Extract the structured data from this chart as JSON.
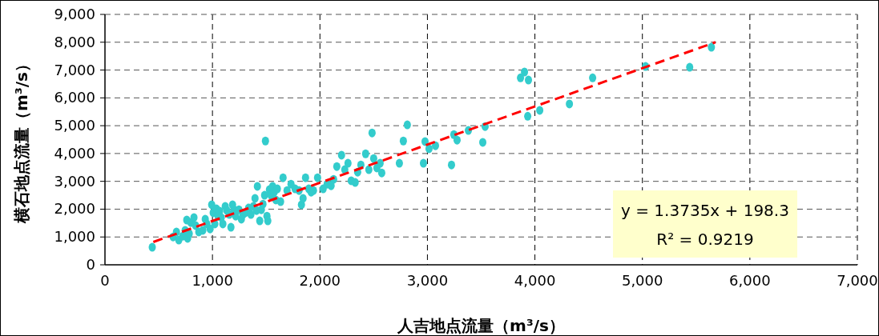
{
  "chart_data": {
    "type": "scatter",
    "xlabel": "人吉地点流量（m³/s）",
    "ylabel": "横石地点流量（m³/s）",
    "annotations": [
      "y = 1.3735x + 198.3",
      "R² = 0.9219"
    ],
    "xlim": [
      0,
      7000
    ],
    "ylim": [
      0,
      9000
    ],
    "xticks": [
      0,
      {
        "value": 1000,
        "label": "1,000"
      },
      {
        "value": 2000,
        "label": "2,000"
      },
      {
        "value": 3000,
        "label": "3,000"
      },
      {
        "value": 4000,
        "label": "4,000"
      },
      {
        "value": 5000,
        "label": "5,000"
      },
      {
        "value": 6000,
        "label": "6,000"
      },
      {
        "value": 7000,
        "label": "7,000"
      }
    ],
    "yticks": [
      0,
      {
        "value": 1000,
        "label": "1,000"
      },
      {
        "value": 2000,
        "label": "2,000"
      },
      {
        "value": 3000,
        "label": "3,000"
      },
      {
        "value": 4000,
        "label": "4,000"
      },
      {
        "value": 5000,
        "label": "5,000"
      },
      {
        "value": 6000,
        "label": "6,000"
      },
      {
        "value": 7000,
        "label": "7,000"
      },
      {
        "value": 8000,
        "label": "8,000"
      },
      {
        "value": 9000,
        "label": "9,000"
      }
    ],
    "grid": true,
    "series": [
      {
        "color": "#33cccc",
        "marker": "circle",
        "x": [
          440,
          634,
          665,
          687,
          724,
          746,
          769,
          784,
          761,
          799,
          828,
          843,
          873,
          910,
          933,
          948,
          978,
          993,
          1007,
          1022,
          1037,
          1052,
          1067,
          1082,
          1097,
          1119,
          1134,
          1157,
          1172,
          1187,
          1201,
          1216,
          1246,
          1269,
          1284,
          1306,
          1336,
          1358,
          1381,
          1396,
          1410,
          1418,
          1440,
          1455,
          1470,
          1485,
          1507,
          1515,
          1493,
          1530,
          1545,
          1560,
          1575,
          1590,
          1604,
          1634,
          1657,
          1694,
          1731,
          1769,
          1806,
          1828,
          1843,
          1866,
          1896,
          1918,
          1940,
          1978,
          2030,
          2067,
          2104,
          2127,
          2157,
          2201,
          2231,
          2261,
          2291,
          2328,
          2351,
          2381,
          2425,
          2455,
          2485,
          2500,
          2530,
          2560,
          2575,
          2739,
          2776,
          2813,
          2963,
          2978,
          3015,
          3075,
          3224,
          3246,
          3276,
          3381,
          3515,
          3537,
          3866,
          3903,
          3940,
          3933,
          4045,
          4321,
          4537,
          5030,
          5440,
          5642
        ],
        "values": [
          630,
          1000,
          1180,
          890,
          1030,
          1240,
          950,
          1120,
          1610,
          1520,
          1700,
          1410,
          1180,
          1240,
          1640,
          1470,
          1290,
          2160,
          1870,
          1470,
          2010,
          1750,
          1930,
          1700,
          1470,
          2100,
          1950,
          1810,
          1350,
          2160,
          1980,
          1750,
          1980,
          1640,
          1810,
          1870,
          2040,
          1810,
          2100,
          2390,
          1950,
          2820,
          1580,
          1980,
          2180,
          2500,
          1750,
          1580,
          4450,
          2700,
          2500,
          2820,
          2610,
          2330,
          2730,
          2270,
          3130,
          2670,
          2900,
          2730,
          2670,
          2160,
          2390,
          3130,
          2730,
          2610,
          2670,
          3130,
          2730,
          2900,
          2840,
          3070,
          3530,
          3940,
          3420,
          3650,
          3020,
          2960,
          3330,
          3590,
          3990,
          3420,
          4740,
          3820,
          3480,
          3650,
          3300,
          3650,
          4450,
          5030,
          3650,
          4430,
          4170,
          4280,
          3590,
          4680,
          4480,
          4830,
          4400,
          4970,
          6720,
          6930,
          6640,
          5340,
          5550,
          5780,
          6720,
          7130,
          7100,
          7820
        ]
      },
      {
        "type": "line",
        "color": "#ff0000",
        "line_style": "dashed",
        "x": [
          450,
          5680
        ],
        "values": [
          820,
          8000
        ]
      }
    ]
  }
}
